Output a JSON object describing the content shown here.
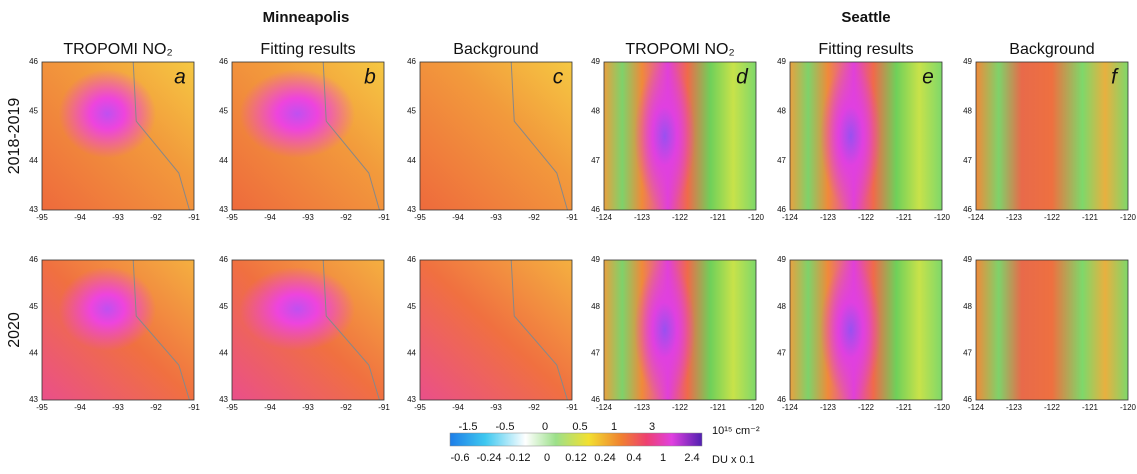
{
  "cities": [
    "Minneapolis",
    "Seattle"
  ],
  "columns": [
    "TROPOMI NO₂",
    "Fitting results",
    "Background",
    "TROPOMI NO₂",
    "Fitting results",
    "Background"
  ],
  "rows": [
    "2018-2019",
    "2020"
  ],
  "panel_letters": [
    "a",
    "b",
    "c",
    "d",
    "e",
    "f"
  ],
  "minneapolis_axes": {
    "x_ticks": [
      "-95",
      "-94",
      "-93",
      "-92",
      "-91"
    ],
    "y_ticks": [
      "46",
      "45",
      "44",
      "43"
    ]
  },
  "seattle_axes": {
    "x_ticks": [
      "-124",
      "-123",
      "-122",
      "-121",
      "-120"
    ],
    "y_ticks": [
      "49",
      "48",
      "47",
      "46"
    ]
  },
  "colorbar": {
    "top_labels": [
      "-1.5",
      "-0.5",
      "0",
      "0.5",
      "1",
      "3"
    ],
    "top_unit": "10¹⁵ cm⁻²",
    "bottom_labels": [
      "-0.6",
      "-0.24",
      "-0.12",
      "0",
      "0.12",
      "0.24",
      "0.4",
      "1",
      "2.4"
    ],
    "bottom_unit": "DU x 0.1"
  }
}
